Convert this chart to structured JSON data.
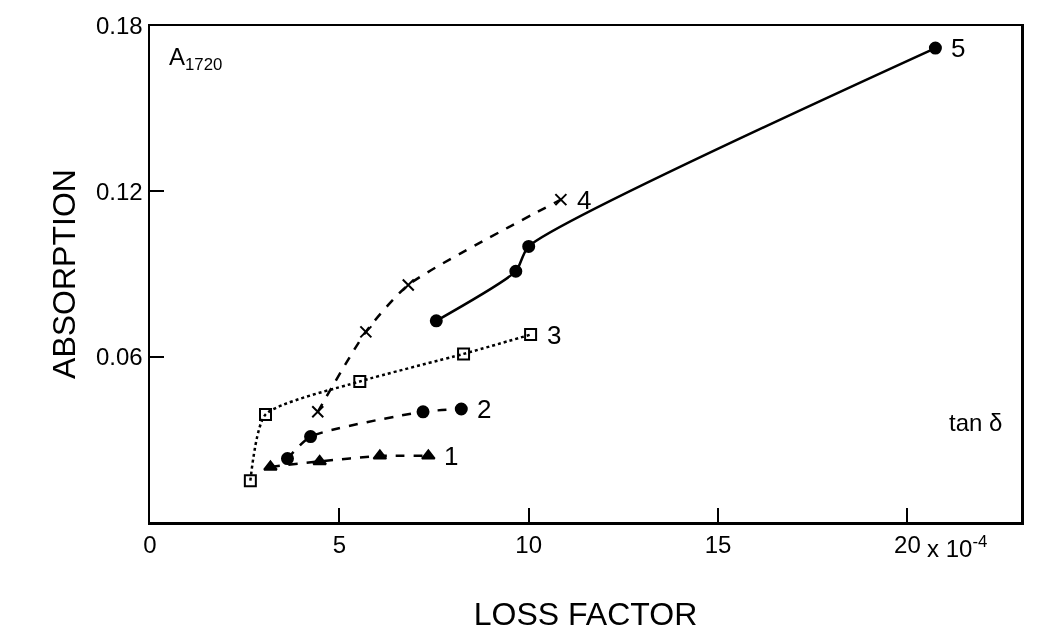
{
  "chart_data": {
    "type": "line",
    "xlabel": "LOSS FACTOR",
    "ylabel": "ABSORPTION",
    "annotations": [
      "A$_{1720}$",
      "tan δ",
      "x 10$^{-4}$"
    ],
    "xlim": [
      0,
      23
    ],
    "xticks": [
      0,
      5,
      10,
      15,
      20
    ],
    "ylim": [
      0,
      0.18
    ],
    "yticks": [
      0.06,
      0.12,
      0.18
    ],
    "grid": false,
    "legend": false,
    "series": [
      {
        "name": "1",
        "color": "#000000",
        "marker": "triangle",
        "line_style": "dashed",
        "x": [
          3.18,
          4.48,
          6.07,
          7.35
        ],
        "values": [
          0.02,
          0.022,
          0.024,
          0.024
        ]
      },
      {
        "name": "2",
        "color": "#000000",
        "marker": "circle",
        "line_style": "dashed",
        "x": [
          3.63,
          4.24,
          7.21,
          8.22
        ],
        "values": [
          0.023,
          0.031,
          0.04,
          0.041
        ]
      },
      {
        "name": "3",
        "color": "#000000",
        "marker": "square",
        "line_style": "dotted",
        "x": [
          2.65,
          3.05,
          5.54,
          8.28,
          10.05
        ],
        "values": [
          0.015,
          0.039,
          0.051,
          0.061,
          0.068
        ]
      },
      {
        "name": "4",
        "color": "#000000",
        "marker": "cross",
        "line_style": "dashed",
        "x": [
          4.43,
          5.7,
          6.82,
          10.85
        ],
        "values": [
          0.04,
          0.069,
          0.086,
          0.117
        ]
      },
      {
        "name": "5",
        "color": "#000000",
        "marker": "circle",
        "line_style": "solid",
        "x": [
          7.56,
          9.66,
          10.0,
          20.74
        ],
        "values": [
          0.073,
          0.091,
          0.1,
          0.172
        ]
      }
    ]
  }
}
